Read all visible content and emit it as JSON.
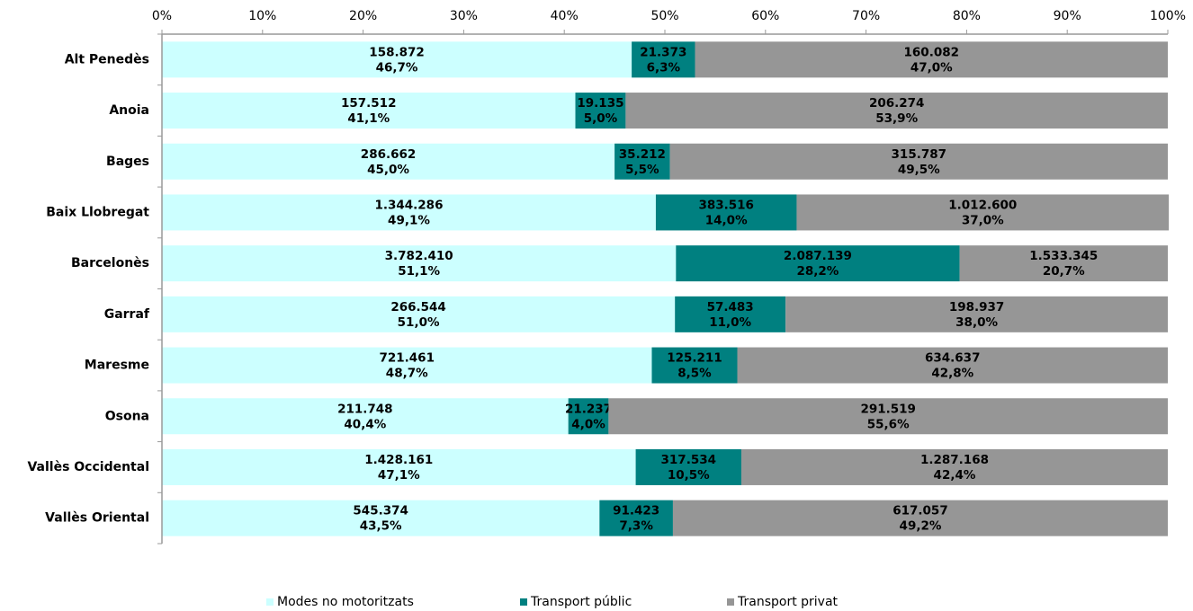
{
  "chart_data": {
    "type": "stacked_bar_horizontal",
    "categories": [
      "Alt Penedès",
      "Anoia",
      "Bages",
      "Baix Llobregat",
      "Barcelonès",
      "Garraf",
      "Maresme",
      "Osona",
      "Vallès Occidental",
      "Vallès Oriental"
    ],
    "series": [
      {
        "name": "Modes no motoritzats",
        "color": "#ccffff",
        "values": [
          46.7,
          41.1,
          45.0,
          49.1,
          51.1,
          51.0,
          48.7,
          40.4,
          47.1,
          43.5
        ],
        "value_labels": [
          "46,7%",
          "41,1%",
          "45,0%",
          "49,1%",
          "51,1%",
          "51,0%",
          "48,7%",
          "40,4%",
          "47,1%",
          "43,5%"
        ],
        "counts": [
          158872,
          157512,
          286662,
          1344286,
          3782410,
          266544,
          721461,
          211748,
          1428161,
          545374
        ],
        "count_labels": [
          "158.872",
          "157.512",
          "286.662",
          "1.344.286",
          "3.782.410",
          "266.544",
          "721.461",
          "211.748",
          "1.428.161",
          "545.374"
        ]
      },
      {
        "name": "Transport públic",
        "color": "#008080",
        "values": [
          6.3,
          5.0,
          5.5,
          14.0,
          28.2,
          11.0,
          8.5,
          4.0,
          10.5,
          7.3
        ],
        "value_labels": [
          "6,3%",
          "5,0%",
          "5,5%",
          "14,0%",
          "28,2%",
          "11,0%",
          "8,5%",
          "4,0%",
          "10,5%",
          "7,3%"
        ],
        "counts": [
          21373,
          19135,
          35212,
          383516,
          2087139,
          57483,
          125211,
          21237,
          317534,
          91423
        ],
        "count_labels": [
          "21.373",
          "19.135",
          "35.212",
          "383.516",
          "2.087.139",
          "57.483",
          "125.211",
          "21.237",
          "317.534",
          "91.423"
        ]
      },
      {
        "name": "Transport privat",
        "color": "#969696",
        "values": [
          47.0,
          53.9,
          49.5,
          37.0,
          20.7,
          38.0,
          42.8,
          55.6,
          42.4,
          49.2
        ],
        "value_labels": [
          "47,0%",
          "53,9%",
          "49,5%",
          "37,0%",
          "20,7%",
          "38,0%",
          "42,8%",
          "55,6%",
          "42,4%",
          "49,2%"
        ],
        "counts": [
          160082,
          206274,
          315787,
          1012600,
          1533345,
          198937,
          634637,
          291519,
          1287168,
          617057
        ],
        "count_labels": [
          "160.082",
          "206.274",
          "315.787",
          "1.012.600",
          "1.533.345",
          "198.937",
          "634.637",
          "291.519",
          "1.287.168",
          "617.057"
        ]
      }
    ],
    "xlim": [
      0,
      100
    ],
    "xticks": [
      {
        "value": 0,
        "label": "0%"
      },
      {
        "value": 10,
        "label": "10%"
      },
      {
        "value": 20,
        "label": "20%"
      },
      {
        "value": 30,
        "label": "30%"
      },
      {
        "value": 40,
        "label": "40%"
      },
      {
        "value": 50,
        "label": "50%"
      },
      {
        "value": 60,
        "label": "60%"
      },
      {
        "value": 70,
        "label": "70%"
      },
      {
        "value": 80,
        "label": "80%"
      },
      {
        "value": 90,
        "label": "90%"
      },
      {
        "value": 100,
        "label": "100%"
      }
    ],
    "grid": false,
    "legend": "bottom"
  }
}
